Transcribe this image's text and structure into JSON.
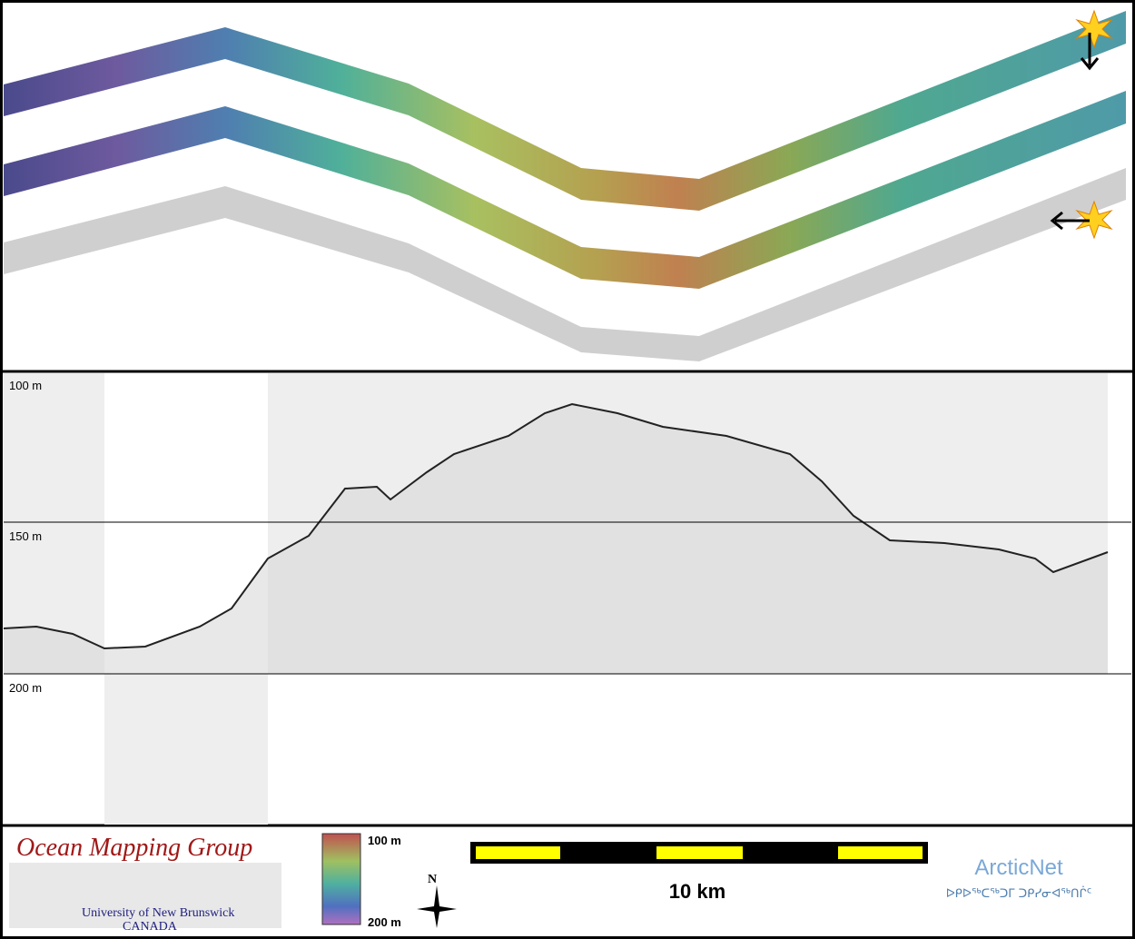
{
  "profile": {
    "depth_labels": [
      "100 m",
      "150 m",
      "200 m"
    ]
  },
  "footer": {
    "logo": {
      "title": "Ocean Mapping Group",
      "university": "University of New Brunswick",
      "country": "CANADA"
    },
    "colorbar": {
      "top": "100 m",
      "bottom": "200 m"
    },
    "north": "N",
    "scale": "10 km",
    "partner": {
      "name": "ArcticNet",
      "inuktitut": "ᐅᑭᐅᖅᑕᖅᑐᒥ ᑐᑭᓯᓂᐊᖅᑎᒌᑦ"
    }
  }
}
